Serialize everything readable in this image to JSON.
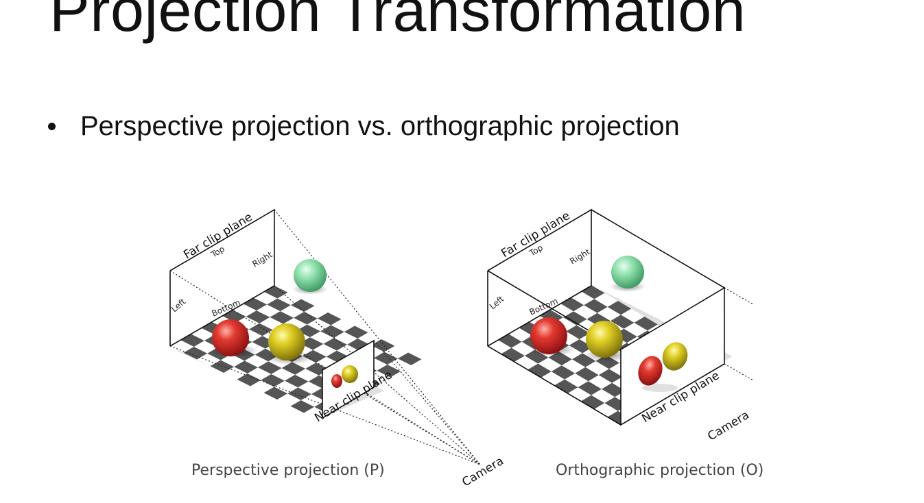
{
  "slide": {
    "title": "Projection Transformation",
    "bullet": "Perspective projection vs. orthographic projection"
  },
  "perspective": {
    "caption": "Perspective projection (P)",
    "far_clip": "Far clip plane",
    "near_clip": "Near clip plane",
    "camera": "Camera",
    "top": "Top",
    "left": "Left",
    "right": "Right",
    "bottom": "Bottom"
  },
  "orthographic": {
    "caption": "Orthographic projection (O)",
    "far_clip": "Far clip plane",
    "near_clip": "Near clip plane",
    "camera": "Camera",
    "top": "Top",
    "left": "Left",
    "right": "Right",
    "bottom": "Bottom"
  },
  "colors": {
    "red_sphere": "#d8262a",
    "yellow_sphere": "#d9c71c",
    "green_sphere": "#7fd9a0",
    "checker_dark": "#555555",
    "checker_light": "#ffffff"
  }
}
